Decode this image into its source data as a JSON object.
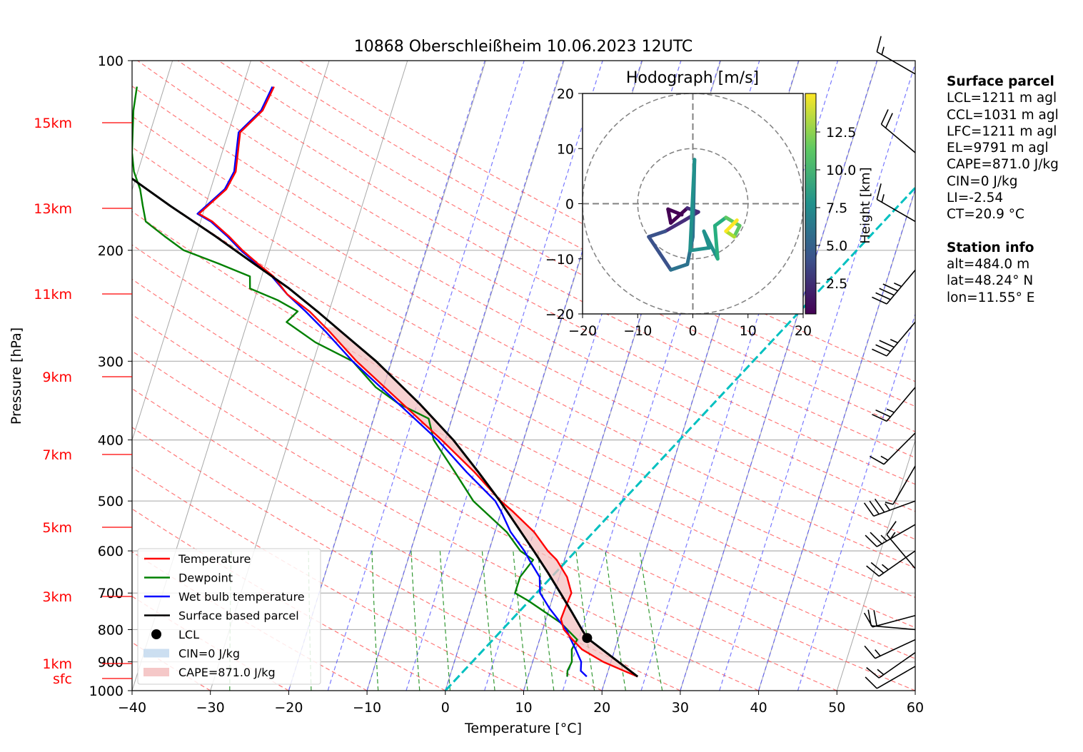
{
  "chart_data": [
    {
      "type": "line",
      "title": "10868 Oberschleißheim 10.06.2023 12UTC",
      "xlabel": "Temperature [°C]",
      "ylabel": "Pressure [hPa]",
      "xlim": [
        -40,
        60
      ],
      "ylim": [
        1000,
        100
      ],
      "y_scale": "log",
      "x_ticks": [
        "−40",
        "−30",
        "−20",
        "−10",
        "0",
        "10",
        "20",
        "30",
        "40",
        "50",
        "60"
      ],
      "y_ticks": [
        "100",
        "200",
        "300",
        "400",
        "500",
        "600",
        "700",
        "800",
        "900",
        "1000"
      ],
      "height_labels": [
        "15km",
        "13km",
        "11km",
        "9km",
        "7km",
        "5km",
        "3km",
        "1km",
        "sfc"
      ],
      "grid": true,
      "legend_position": "lower-left",
      "legend": [
        {
          "label": "Temperature",
          "color": "#ff0000"
        },
        {
          "label": "Dewpoint",
          "color": "#008000"
        },
        {
          "label": "Wet bulb temperature",
          "color": "#0000ff"
        },
        {
          "label": "Surface based parcel",
          "color": "#000000"
        },
        {
          "label": "LCL",
          "color": "#000000"
        },
        {
          "label": "CIN=0 J/kg",
          "color": "#c6dbef"
        },
        {
          "label": "CAPE=871.0 J/kg",
          "color": "#f4c2c2"
        }
      ],
      "series": [
        {
          "name": "Temperature",
          "color": "#ff0000",
          "points": [
            [
              950,
              24.0
            ],
            [
              930,
              22.0
            ],
            [
              900,
              19.0
            ],
            [
              860,
              15.8
            ],
            [
              830,
              14.2
            ],
            [
              800,
              12.7
            ],
            [
              770,
              11.9
            ],
            [
              740,
              12.0
            ],
            [
              700,
              12.2
            ],
            [
              660,
              11.0
            ],
            [
              620,
              9.0
            ],
            [
              600,
              7.5
            ],
            [
              560,
              5.0
            ],
            [
              520,
              1.5
            ],
            [
              500,
              -0.5
            ],
            [
              450,
              -5.0
            ],
            [
              400,
              -10.5
            ],
            [
              350,
              -17.0
            ],
            [
              300,
              -24.5
            ],
            [
              270,
              -29.0
            ],
            [
              250,
              -32.5
            ],
            [
              235,
              -36.0
            ],
            [
              220,
              -38.5
            ],
            [
              210,
              -41.0
            ],
            [
              200,
              -43.5
            ],
            [
              190,
              -45.8
            ],
            [
              180,
              -48.5
            ],
            [
              175,
              -50.5
            ],
            [
              160,
              -48.0
            ],
            [
              150,
              -47.5
            ],
            [
              130,
              -48.5
            ],
            [
              120,
              -46.5
            ],
            [
              110,
              -46.0
            ]
          ]
        },
        {
          "name": "Dewpoint",
          "color": "#008000",
          "points": [
            [
              950,
              15.0
            ],
            [
              930,
              14.8
            ],
            [
              900,
              15.0
            ],
            [
              860,
              14.5
            ],
            [
              830,
              14.8
            ],
            [
              780,
              12.0
            ],
            [
              720,
              7.0
            ],
            [
              700,
              5.0
            ],
            [
              660,
              5.0
            ],
            [
              620,
              6.0
            ],
            [
              600,
              4.0
            ],
            [
              560,
              1.5
            ],
            [
              500,
              -4.0
            ],
            [
              450,
              -7.5
            ],
            [
              400,
              -11.5
            ],
            [
              370,
              -13.0
            ],
            [
              350,
              -17.5
            ],
            [
              330,
              -21.0
            ],
            [
              300,
              -25.0
            ],
            [
              280,
              -30.5
            ],
            [
              260,
              -35.0
            ],
            [
              250,
              -34.0
            ],
            [
              240,
              -37.0
            ],
            [
              230,
              -41.0
            ],
            [
              220,
              -41.5
            ],
            [
              210,
              -46.0
            ],
            [
              200,
              -51.0
            ],
            [
              190,
              -54.0
            ],
            [
              180,
              -57.0
            ],
            [
              170,
              -58.0
            ],
            [
              160,
              -59.0
            ],
            [
              150,
              -60.5
            ],
            [
              140,
              -61.5
            ],
            [
              120,
              -63.0
            ],
            [
              110,
              -63.5
            ]
          ]
        },
        {
          "name": "Wet bulb temperature",
          "color": "#0000ff",
          "points": [
            [
              950,
              17.5
            ],
            [
              930,
              16.5
            ],
            [
              900,
              16.2
            ],
            [
              860,
              15.0
            ],
            [
              830,
              14.0
            ],
            [
              800,
              13.0
            ],
            [
              780,
              12.0
            ],
            [
              740,
              10.0
            ],
            [
              700,
              8.2
            ],
            [
              660,
              7.5
            ],
            [
              620,
              5.5
            ],
            [
              600,
              4.5
            ],
            [
              560,
              2.0
            ],
            [
              520,
              0.0
            ],
            [
              500,
              -1.2
            ],
            [
              450,
              -6.0
            ],
            [
              400,
              -11.0
            ],
            [
              350,
              -17.5
            ],
            [
              300,
              -25.0
            ],
            [
              270,
              -29.5
            ],
            [
              250,
              -33.0
            ],
            [
              235,
              -36.0
            ],
            [
              220,
              -38.7
            ],
            [
              210,
              -41.2
            ],
            [
              200,
              -43.7
            ],
            [
              190,
              -46.0
            ],
            [
              180,
              -48.7
            ],
            [
              175,
              -50.7
            ],
            [
              160,
              -48.2
            ],
            [
              150,
              -47.7
            ],
            [
              130,
              -48.7
            ],
            [
              120,
              -46.7
            ],
            [
              110,
              -46.2
            ]
          ]
        },
        {
          "name": "Surface based parcel",
          "color": "#000000",
          "points": [
            [
              950,
              24.0
            ],
            [
              825,
              16.0
            ],
            [
              800,
              15.0
            ],
            [
              750,
              13.0
            ],
            [
              700,
              10.8
            ],
            [
              650,
              8.4
            ],
            [
              600,
              5.7
            ],
            [
              550,
              2.7
            ],
            [
              500,
              -0.6
            ],
            [
              450,
              -4.5
            ],
            [
              400,
              -9.0
            ],
            [
              350,
              -14.8
            ],
            [
              300,
              -22.0
            ],
            [
              270,
              -27.5
            ],
            [
              250,
              -31.5
            ],
            [
              230,
              -36.0
            ],
            [
              210,
              -41.5
            ],
            [
              190,
              -47.5
            ],
            [
              170,
              -54.5
            ],
            [
              150,
              -62.0
            ],
            [
              130,
              -70.5
            ],
            [
              120,
              -75.5
            ]
          ]
        }
      ],
      "lcl_point": [
        825,
        16.0
      ],
      "mixing_ratio_line": {
        "color": "#00c0c0",
        "points": [
          [
            1000,
            0.0
          ],
          [
            100,
            50.0
          ]
        ]
      }
    },
    {
      "type": "line",
      "title": "Hodograph [m/s]",
      "xlim": [
        -20,
        20
      ],
      "ylim": [
        -20,
        20
      ],
      "x_ticks": [
        "−20",
        "−10",
        "0",
        "10",
        "20"
      ],
      "y_ticks": [
        "20",
        "10",
        "0",
        "−10",
        "−20"
      ],
      "colorbar_label": "Height [km]",
      "colorbar_ticks": [
        "12.5",
        "10.0",
        "7.5",
        "5.0",
        "2.5"
      ],
      "points": [
        [
          -2.0,
          -2.0,
          0.5
        ],
        [
          -4.5,
          -1.0,
          1.0
        ],
        [
          -4.0,
          -3.5,
          1.5
        ],
        [
          -1.0,
          -0.8,
          2.0
        ],
        [
          1.0,
          -1.5,
          2.5
        ],
        [
          -1.5,
          -3.0,
          3.0
        ],
        [
          -5.0,
          -5.0,
          3.5
        ],
        [
          -8.0,
          -6.0,
          4.0
        ],
        [
          -6.0,
          -9.0,
          4.5
        ],
        [
          -4.0,
          -12.0,
          5.0
        ],
        [
          -1.0,
          -11.0,
          5.5
        ],
        [
          0.0,
          -6.0,
          6.0
        ],
        [
          0.3,
          8.0,
          6.5
        ],
        [
          -0.5,
          -8.5,
          7.0
        ],
        [
          3.0,
          -8.0,
          7.5
        ],
        [
          2.0,
          -5.0,
          8.0
        ],
        [
          4.5,
          -10.0,
          8.5
        ],
        [
          4.0,
          -4.0,
          9.0
        ],
        [
          6.0,
          -2.5,
          10.0
        ],
        [
          8.5,
          -4.0,
          11.0
        ],
        [
          7.5,
          -6.0,
          12.0
        ],
        [
          6.0,
          -5.0,
          13.0
        ],
        [
          8.0,
          -3.0,
          14.0
        ]
      ]
    }
  ],
  "info": {
    "surface_title": "Surface parcel",
    "surface_lines": [
      "LCL=1211 m agl",
      "CCL=1031 m agl",
      "LFC=1211 m agl",
      "EL=9791 m agl",
      "CAPE=871.0 J/kg",
      "CIN=0 J/kg",
      "LI=-2.54",
      "CT=20.9 °C"
    ],
    "station_title": "Station info",
    "station_lines": [
      "alt=484.0 m",
      "lat=48.24° N",
      "lon=11.55° E"
    ]
  },
  "wind_barbs": [
    {
      "p": 105,
      "speed_kt": 15,
      "dir": 300
    },
    {
      "p": 140,
      "speed_kt": 20,
      "dir": 310
    },
    {
      "p": 180,
      "speed_kt": 15,
      "dir": 300
    },
    {
      "p": 215,
      "speed_kt": 45,
      "dir": 220
    },
    {
      "p": 260,
      "speed_kt": 35,
      "dir": 220
    },
    {
      "p": 330,
      "speed_kt": 25,
      "dir": 220
    },
    {
      "p": 390,
      "speed_kt": 15,
      "dir": 225
    },
    {
      "p": 440,
      "speed_kt": 5,
      "dir": 210
    },
    {
      "p": 500,
      "speed_kt": 35,
      "dir": 250
    },
    {
      "p": 545,
      "speed_kt": 25,
      "dir": 240
    },
    {
      "p": 600,
      "speed_kt": 25,
      "dir": 235
    },
    {
      "p": 640,
      "speed_kt": 15,
      "dir": 320
    },
    {
      "p": 760,
      "speed_kt": 10,
      "dir": 255
    },
    {
      "p": 800,
      "speed_kt": 20,
      "dir": 275
    },
    {
      "p": 830,
      "speed_kt": 15,
      "dir": 245
    },
    {
      "p": 870,
      "speed_kt": 15,
      "dir": 235
    },
    {
      "p": 915,
      "speed_kt": 10,
      "dir": 240
    }
  ]
}
